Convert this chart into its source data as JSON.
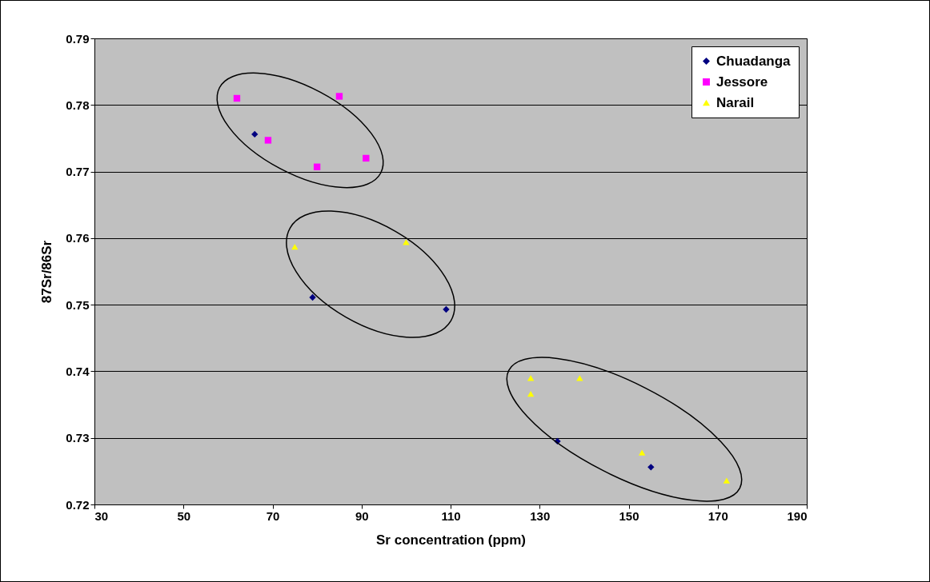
{
  "chart_data": {
    "type": "scatter",
    "xlabel": "Sr concentration (ppm)",
    "ylabel": "87Sr/86Sr",
    "xlim": [
      30,
      190
    ],
    "xticks": [
      30,
      50,
      70,
      90,
      110,
      130,
      150,
      170,
      190
    ],
    "ylim": [
      0.72,
      0.79
    ],
    "yticks": [
      0.72,
      0.73,
      0.74,
      0.75,
      0.76,
      0.77,
      0.78,
      0.79
    ],
    "grid": "y",
    "legend": "top right",
    "series": [
      {
        "name": "Chuadanga",
        "color": "#000080",
        "marker": "diamond",
        "x": [
          66,
          79,
          109,
          134,
          155
        ],
        "values": [
          0.7756,
          0.7511,
          0.7493,
          0.7295,
          0.7256
        ]
      },
      {
        "name": "Jessore",
        "color": "#ff00ff",
        "marker": "square",
        "x": [
          62,
          69,
          80,
          85,
          91
        ],
        "values": [
          0.781,
          0.7747,
          0.7707,
          0.7813,
          0.772
        ]
      },
      {
        "name": "Narail",
        "color": "#ffff00",
        "marker": "triangle",
        "x": [
          75,
          100,
          128,
          128,
          139,
          153,
          172
        ],
        "values": [
          0.7587,
          0.7594,
          0.739,
          0.7366,
          0.739,
          0.7278,
          0.7236
        ]
      }
    ]
  }
}
